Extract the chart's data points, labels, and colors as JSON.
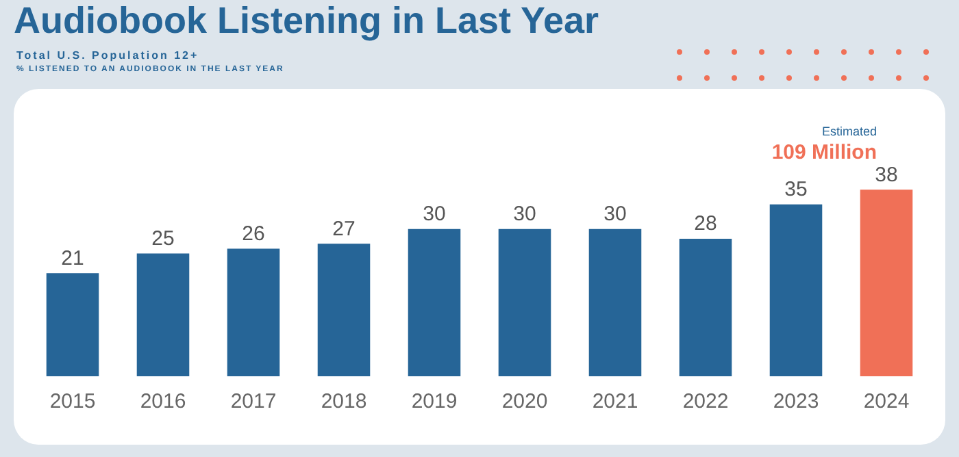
{
  "chart_data": {
    "type": "bar",
    "title": "Audiobook Listening in Last Year",
    "subtitle": "Total U.S. Population 12+",
    "categories": [
      "2015",
      "2016",
      "2017",
      "2018",
      "2019",
      "2020",
      "2021",
      "2022",
      "2023",
      "2024"
    ],
    "values": [
      21,
      25,
      26,
      27,
      30,
      30,
      30,
      28,
      35,
      38
    ],
    "colors": [
      "#266597",
      "#266597",
      "#266597",
      "#266597",
      "#266597",
      "#266597",
      "#266597",
      "#266597",
      "#266597",
      "#f07057"
    ],
    "data_labels": true,
    "grid": false,
    "legend": false,
    "annotations": [
      "% LISTENED TO AN AUDIOBOOK IN THE LAST YEAR",
      "Estimated",
      "109 Million"
    ]
  }
}
